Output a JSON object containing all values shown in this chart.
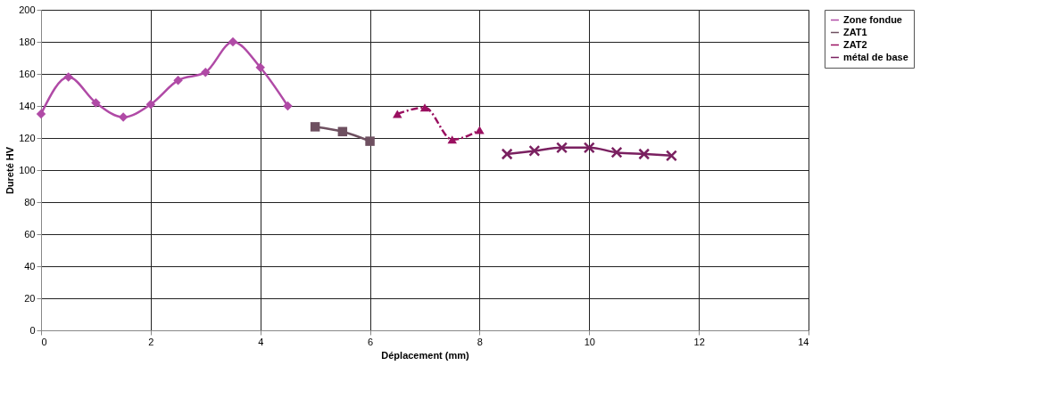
{
  "chart_data": {
    "type": "line",
    "xlabel": "Déplacement (mm)",
    "ylabel": "Dureté HV",
    "xlim": [
      0,
      14
    ],
    "xticks": [
      0,
      2,
      4,
      6,
      8,
      10,
      12,
      14
    ],
    "ylim": [
      0,
      200
    ],
    "yticks": [
      0,
      20,
      40,
      60,
      80,
      100,
      120,
      140,
      160,
      180,
      200
    ],
    "grid": true,
    "legend": "right",
    "series": [
      {
        "name": "Zone fondue",
        "color": "#b04aa6",
        "marker": "diamond",
        "line_style": "solid",
        "x": [
          0,
          0.5,
          1,
          1.5,
          2,
          2.5,
          3,
          3.5,
          4,
          4.5
        ],
        "values": [
          135,
          158,
          142,
          133,
          141,
          156,
          161,
          180,
          164,
          140
        ]
      },
      {
        "name": "ZAT1",
        "color": "#6e5060",
        "marker": "square",
        "line_style": "solid",
        "x": [
          5,
          5.5,
          6
        ],
        "values": [
          127,
          124,
          118
        ]
      },
      {
        "name": "ZAT2",
        "color": "#9a1060",
        "marker": "triangle",
        "line_style": "dashed",
        "x": [
          6.5,
          7,
          7.5,
          8
        ],
        "values": [
          135,
          139,
          119,
          125
        ]
      },
      {
        "name": "métal de base",
        "color": "#7a2060",
        "marker": "cross",
        "line_style": "solid",
        "x": [
          8.5,
          9,
          9.5,
          10,
          10.5,
          11,
          11.5
        ],
        "values": [
          110,
          112,
          114,
          114,
          111,
          110,
          109
        ]
      }
    ]
  }
}
